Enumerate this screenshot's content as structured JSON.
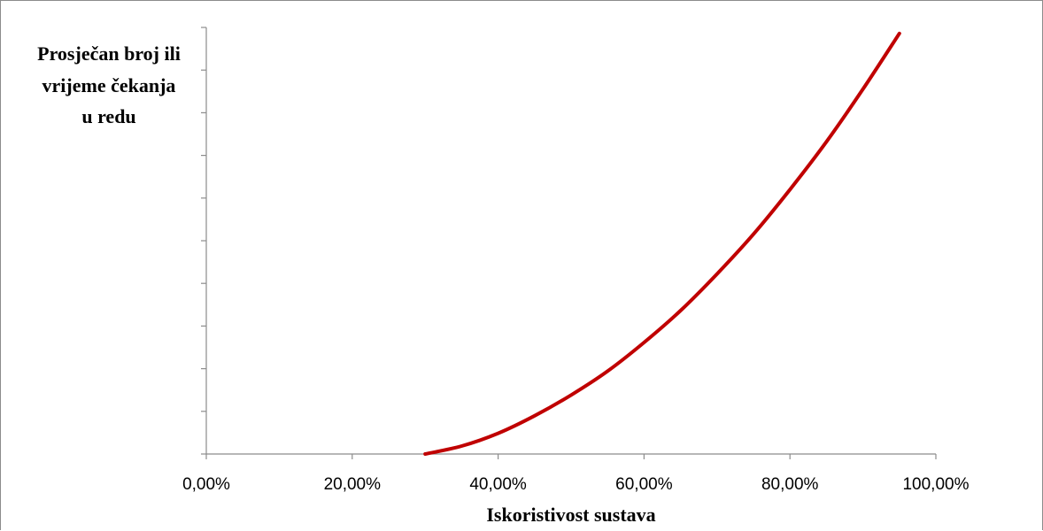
{
  "chart_data": {
    "type": "line",
    "title": "",
    "xlabel": "Iskoristivost sustava",
    "ylabel_lines": [
      "Prosječan broj ili",
      "vrijeme čekanja",
      "u redu"
    ],
    "xlim": [
      0,
      1
    ],
    "x_ticks": [
      "0,00%",
      "20,00%",
      "40,00%",
      "60,00%",
      "80,00%",
      "100,00%"
    ],
    "y_tick_count": 9,
    "y_tick_labels_shown": false,
    "grid": false,
    "legend": "none",
    "series": [
      {
        "color": "#c00000",
        "x": [
          0.3,
          0.35,
          0.4,
          0.45,
          0.5,
          0.55,
          0.6,
          0.65,
          0.7,
          0.75,
          0.8,
          0.85,
          0.9,
          0.95
        ],
        "y": [
          0.0,
          0.5,
          1.3,
          2.4,
          3.7,
          5.2,
          7.0,
          9.0,
          11.3,
          13.8,
          16.6,
          19.6,
          22.9,
          26.4
        ]
      }
    ]
  }
}
